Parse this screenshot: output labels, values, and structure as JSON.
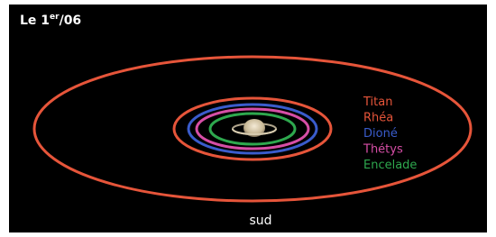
{
  "title": {
    "prefix": "Le 1",
    "superscript": "er",
    "suffix": "/06"
  },
  "orbits": [
    {
      "label": "Titan",
      "color": "#e6553a"
    },
    {
      "label": "Rhéa",
      "color": "#e6553a"
    },
    {
      "label": "Dioné",
      "color": "#3a5ccc"
    },
    {
      "label": "Thétys",
      "color": "#d64ea6"
    },
    {
      "label": "Encelade",
      "color": "#2ea84e"
    }
  ],
  "direction": "sud"
}
